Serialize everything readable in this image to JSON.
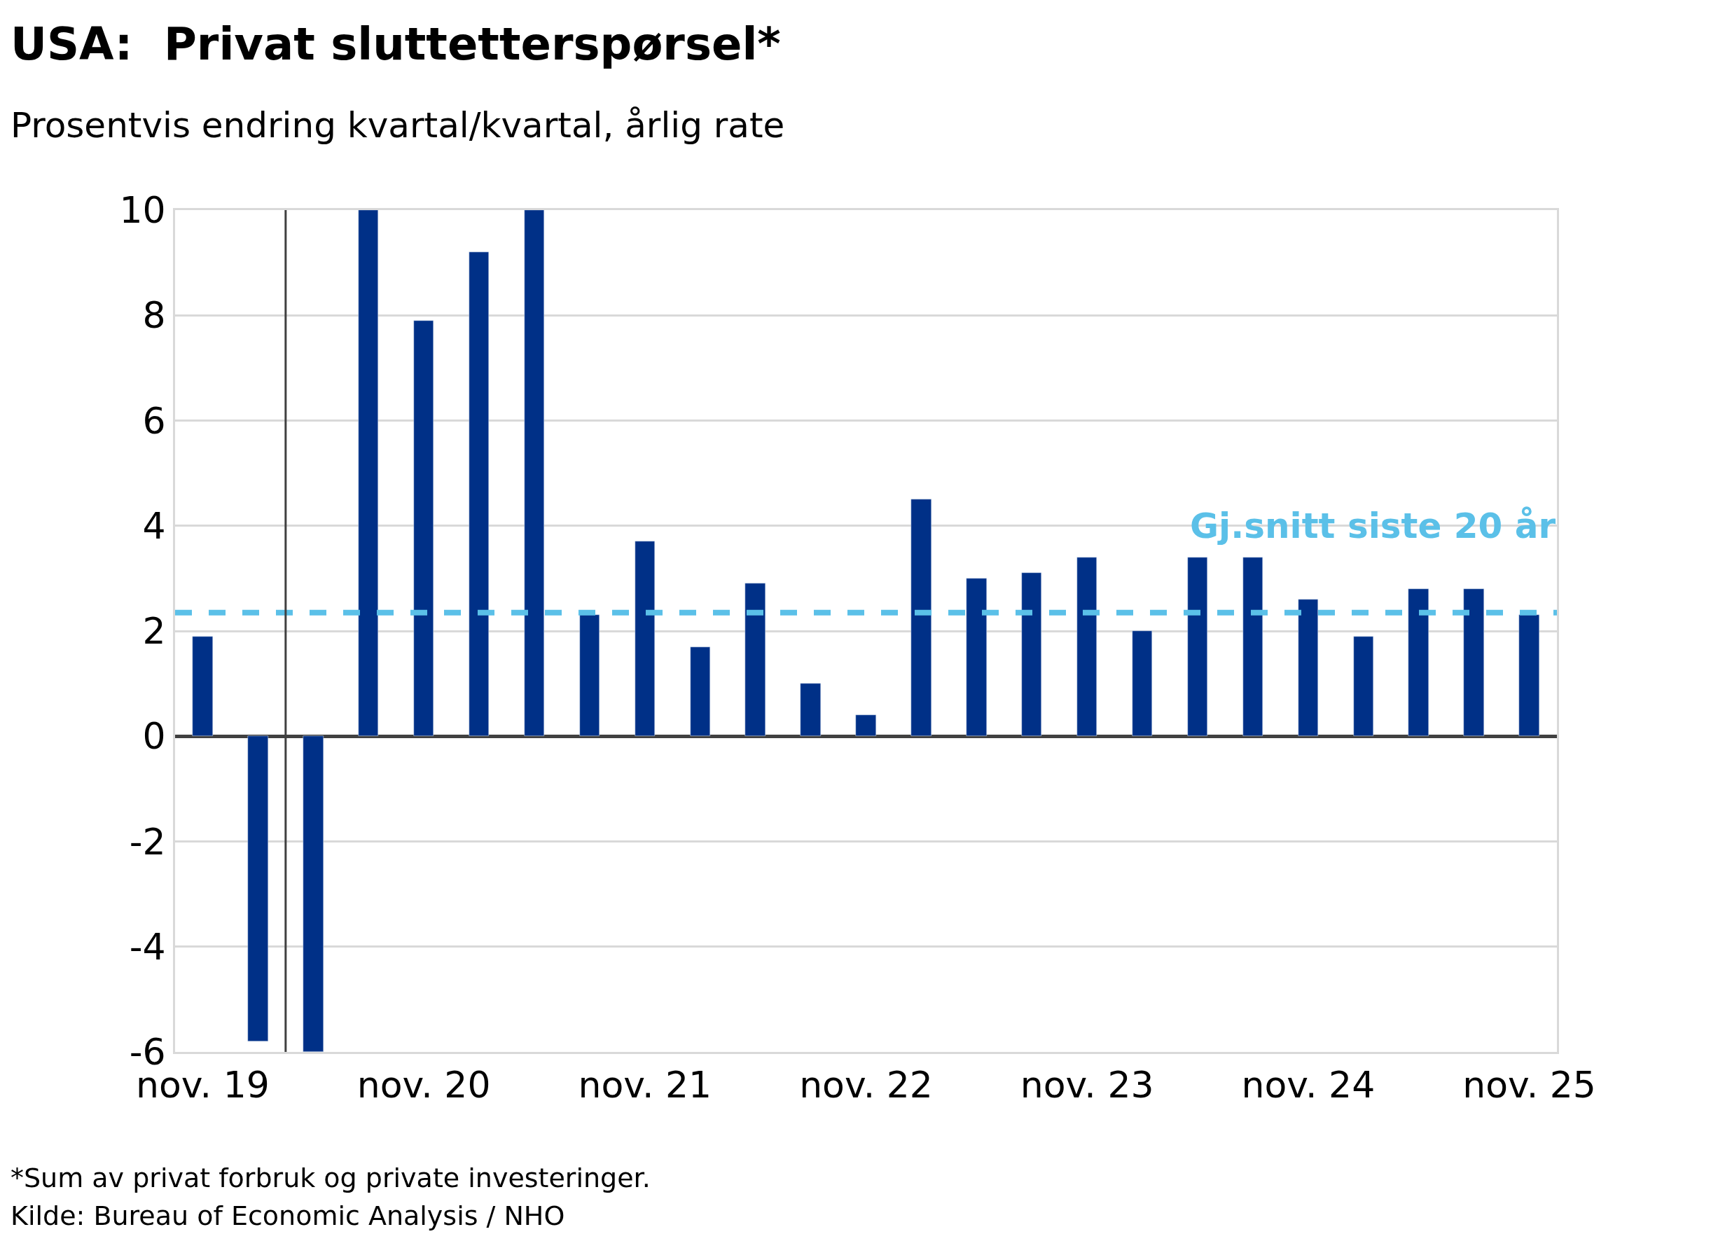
{
  "chart_data": {
    "type": "bar",
    "title": "USA:  Privat sluttetterspørsel*",
    "subtitle": "Prosentvis endring kvartal/kvartal, årlig rate",
    "categories": [
      "nov. 19",
      null,
      null,
      null,
      "nov. 20",
      null,
      null,
      null,
      "nov. 21",
      null,
      null,
      null,
      "nov. 22",
      null,
      null,
      null,
      "nov. 23",
      null,
      null,
      null,
      "nov. 24",
      null,
      null,
      null,
      "nov. 25"
    ],
    "values": [
      1.9,
      -5.8,
      -6,
      10,
      7.9,
      9.2,
      10,
      2.3,
      3.7,
      1.7,
      2.9,
      1.0,
      0.4,
      4.5,
      3.0,
      3.1,
      3.4,
      2.0,
      3.4,
      3.4,
      2.6,
      1.9,
      2.8,
      2.8,
      2.3
    ],
    "color": "#003087",
    "ylim": [
      -6,
      10
    ],
    "yticks": [
      -6,
      -4,
      -2,
      0,
      2,
      4,
      6,
      8,
      10
    ],
    "grid": "y",
    "legend": false,
    "ref_lines": [
      {
        "axis": "y",
        "value": 2.35,
        "label": "Gj.snitt siste 20 år",
        "color": "#5bc0e8",
        "line_style": "dashed"
      }
    ],
    "annotations": [
      "*Sum av privat forbruk og private investeringer.",
      "Kilde: Bureau of Economic Analysis / NHO"
    ]
  }
}
